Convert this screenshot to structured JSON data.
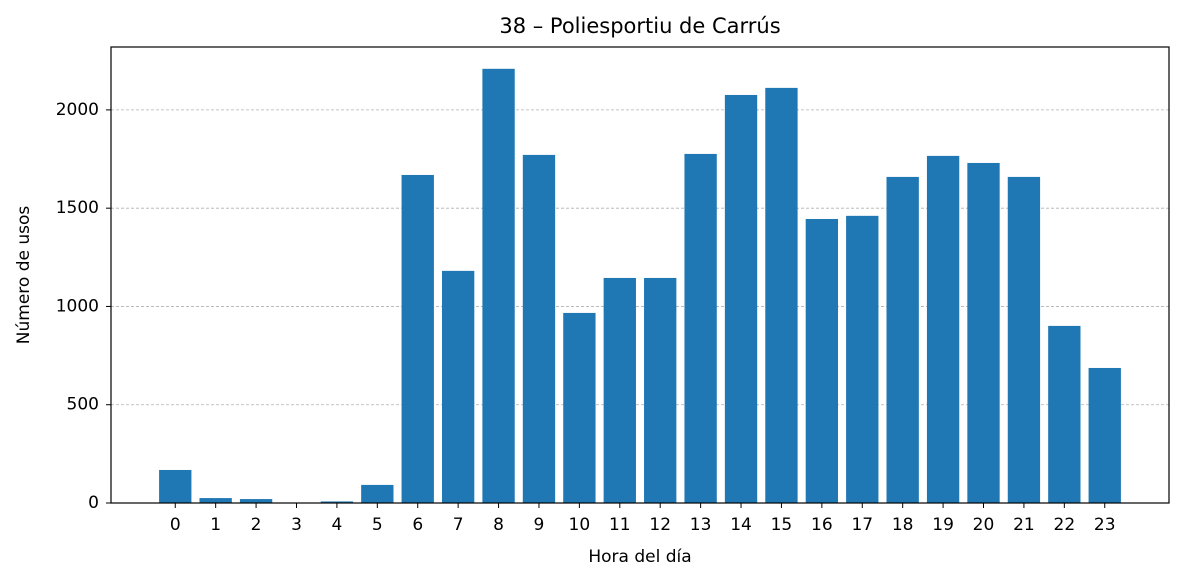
{
  "chart_data": {
    "type": "bar",
    "title": "38 – Poliesportiu de Carrús",
    "x_label": "Hora del día",
    "y_label": "Número de usos",
    "categories": [
      "0",
      "1",
      "2",
      "3",
      "4",
      "5",
      "6",
      "7",
      "8",
      "9",
      "10",
      "11",
      "12",
      "13",
      "14",
      "15",
      "16",
      "17",
      "18",
      "19",
      "20",
      "21",
      "22",
      "23"
    ],
    "values": [
      168,
      25,
      20,
      2,
      8,
      92,
      1669,
      1181,
      2209,
      1771,
      967,
      1145,
      1145,
      1776,
      2076,
      2112,
      1445,
      1461,
      1659,
      1766,
      1730,
      1659,
      901,
      687
    ],
    "color": "#1f77b4",
    "ylim": [
      0,
      2320
    ],
    "yticks": [
      0,
      500,
      1000,
      1500,
      2000
    ],
    "grid": true
  }
}
